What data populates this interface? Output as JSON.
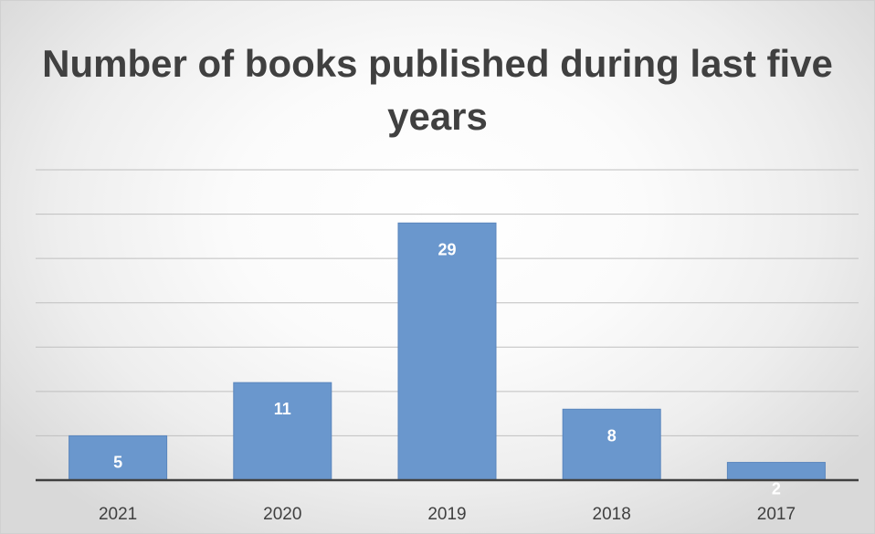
{
  "chart_data": {
    "type": "bar",
    "title": "Number of books published during last five years",
    "categories": [
      "2021",
      "2020",
      "2019",
      "2018",
      "2017"
    ],
    "values": [
      5,
      11,
      29,
      8,
      2
    ],
    "xlabel": "",
    "ylabel": "",
    "ylim": [
      0,
      35
    ],
    "grid": true,
    "legend": "none",
    "data_labels": true,
    "colors": {
      "bar": "#6a97cd",
      "bar_edge": "#5a86bd",
      "grid": "#bfbfbf",
      "axis": "#404040"
    }
  }
}
